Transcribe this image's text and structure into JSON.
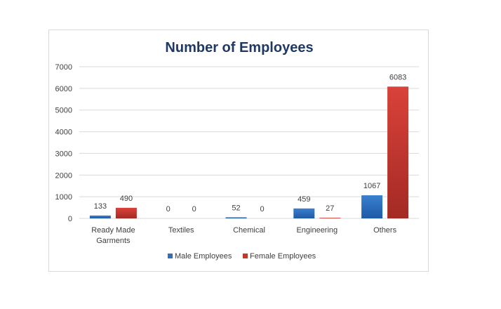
{
  "chart_data": {
    "type": "bar",
    "title": "Number of Employees",
    "categories": [
      "Ready Made Garments",
      "Textiles",
      "Chemical",
      "Engineering",
      "Others"
    ],
    "category_lines": [
      [
        "Ready Made",
        "Garments"
      ],
      [
        "Textiles"
      ],
      [
        "Chemical"
      ],
      [
        "Engineering"
      ],
      [
        "Others"
      ]
    ],
    "series": [
      {
        "name": "Male Employees",
        "values": [
          133,
          0,
          52,
          459,
          1067
        ],
        "color": "#2e6fbe"
      },
      {
        "name": "Female Employees",
        "values": [
          490,
          0,
          0,
          27,
          6083
        ],
        "color": "#c0392b"
      }
    ],
    "ylim": [
      0,
      7000
    ],
    "yticks": [
      0,
      1000,
      2000,
      3000,
      4000,
      5000,
      6000,
      7000
    ],
    "grid": true,
    "legend": "bottom",
    "data_labels": true
  }
}
